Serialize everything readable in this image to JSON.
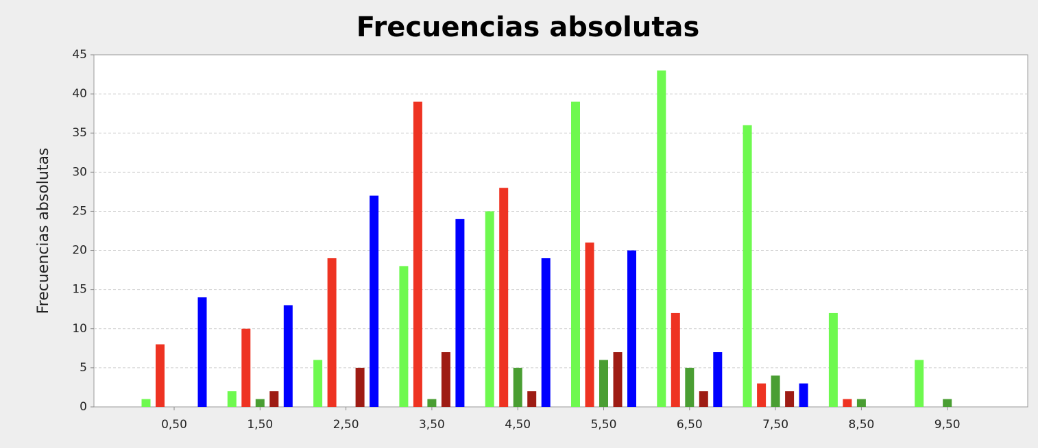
{
  "chart_data": {
    "type": "bar",
    "title": "Frecuencias absolutas",
    "y_label": "Frecuencias absolutas",
    "categories": [
      "0,50",
      "1,50",
      "2,50",
      "3,50",
      "4,50",
      "5,50",
      "6,50",
      "7,50",
      "8,50",
      "9,50"
    ],
    "series": [
      {
        "color": "#6ef94f",
        "values": [
          1,
          2,
          6,
          18,
          25,
          39,
          43,
          36,
          12,
          6
        ]
      },
      {
        "color": "#ee3322",
        "values": [
          8,
          10,
          19,
          39,
          28,
          21,
          12,
          3,
          1,
          0
        ]
      },
      {
        "color": "#4a9e33",
        "values": [
          0,
          1,
          0,
          1,
          5,
          6,
          5,
          4,
          1,
          1
        ]
      },
      {
        "color": "#9e1c14",
        "values": [
          0,
          2,
          5,
          7,
          2,
          7,
          2,
          2,
          0,
          0
        ]
      },
      {
        "color": "#0000ff",
        "values": [
          14,
          13,
          27,
          24,
          19,
          20,
          7,
          3,
          0,
          0
        ]
      }
    ],
    "ylim": [
      0,
      45
    ],
    "yticks": [
      0,
      5,
      10,
      15,
      20,
      25,
      30,
      35,
      40,
      45
    ],
    "grid": true
  }
}
